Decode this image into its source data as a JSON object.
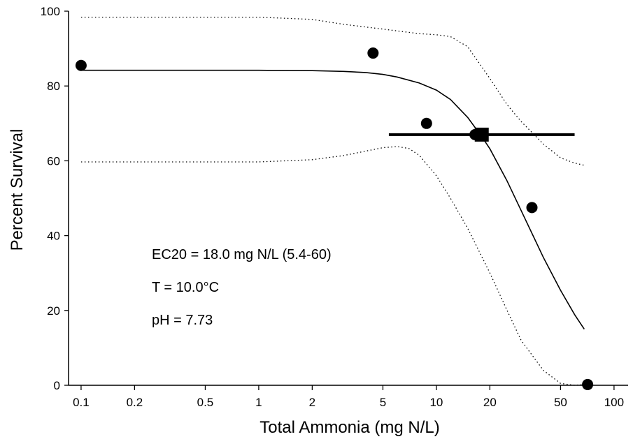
{
  "chart_data": {
    "type": "scatter",
    "x_scale": "log",
    "xlabel": "Total Ammonia (mg N/L)",
    "ylabel": "Percent Survival",
    "xlim": [
      0.085,
      120
    ],
    "ylim": [
      0,
      100
    ],
    "x_ticks": [
      0.1,
      0.2,
      0.5,
      1,
      2,
      5,
      10,
      20,
      50,
      100
    ],
    "x_tick_labels": [
      "0.1",
      "0.2",
      "0.5",
      "1",
      "2",
      "5",
      "10",
      "20",
      "50",
      "100"
    ],
    "y_ticks": [
      0,
      20,
      40,
      60,
      80,
      100
    ],
    "y_tick_labels": [
      "0",
      "20",
      "40",
      "60",
      "80",
      "100"
    ],
    "observed_points": [
      {
        "x": 0.1,
        "y": 85.5
      },
      {
        "x": 4.4,
        "y": 88.8
      },
      {
        "x": 8.8,
        "y": 70.0
      },
      {
        "x": 16.5,
        "y": 67.0
      },
      {
        "x": 34.5,
        "y": 47.5
      },
      {
        "x": 71.0,
        "y": 0.2
      }
    ],
    "ec20": {
      "x": 18.0,
      "y": 67.0,
      "ci_low": 5.4,
      "ci_high": 60
    },
    "fitted_curve": {
      "x": [
        0.1,
        0.5,
        1,
        2,
        3,
        4,
        5,
        6,
        8,
        10,
        12,
        15,
        18,
        20,
        25,
        30,
        40,
        50,
        60,
        68
      ],
      "y": [
        84.2,
        84.2,
        84.2,
        84.1,
        83.9,
        83.6,
        83.1,
        82.4,
        80.8,
        78.9,
        76.4,
        71.6,
        66.5,
        63.2,
        54.6,
        46.7,
        34.2,
        25.4,
        18.9,
        15.0
      ]
    },
    "upper_ci": {
      "x": [
        0.1,
        1,
        2,
        3,
        5,
        8,
        10,
        12,
        15,
        20,
        25,
        30,
        40,
        50,
        60,
        68
      ],
      "y": [
        98.4,
        98.4,
        97.8,
        96.5,
        95.2,
        94.0,
        93.7,
        93.2,
        90.5,
        82.0,
        75.0,
        70.5,
        64.5,
        60.8,
        59.4,
        58.8
      ]
    },
    "lower_ci": {
      "x": [
        0.1,
        1,
        2,
        3,
        4,
        5,
        6,
        7,
        8,
        10,
        12,
        15,
        20,
        25,
        30,
        40,
        50,
        60,
        68
      ],
      "y": [
        59.7,
        59.7,
        60.3,
        61.4,
        62.6,
        63.5,
        63.8,
        63.3,
        61.5,
        56.0,
        50.0,
        42.0,
        30.0,
        20.0,
        12.0,
        4.0,
        0.5,
        0,
        0.2
      ]
    },
    "annotations": [
      "EC20 = 18.0 mg N/L (5.4-60)",
      "T = 10.0°C",
      "pH = 7.73"
    ]
  }
}
